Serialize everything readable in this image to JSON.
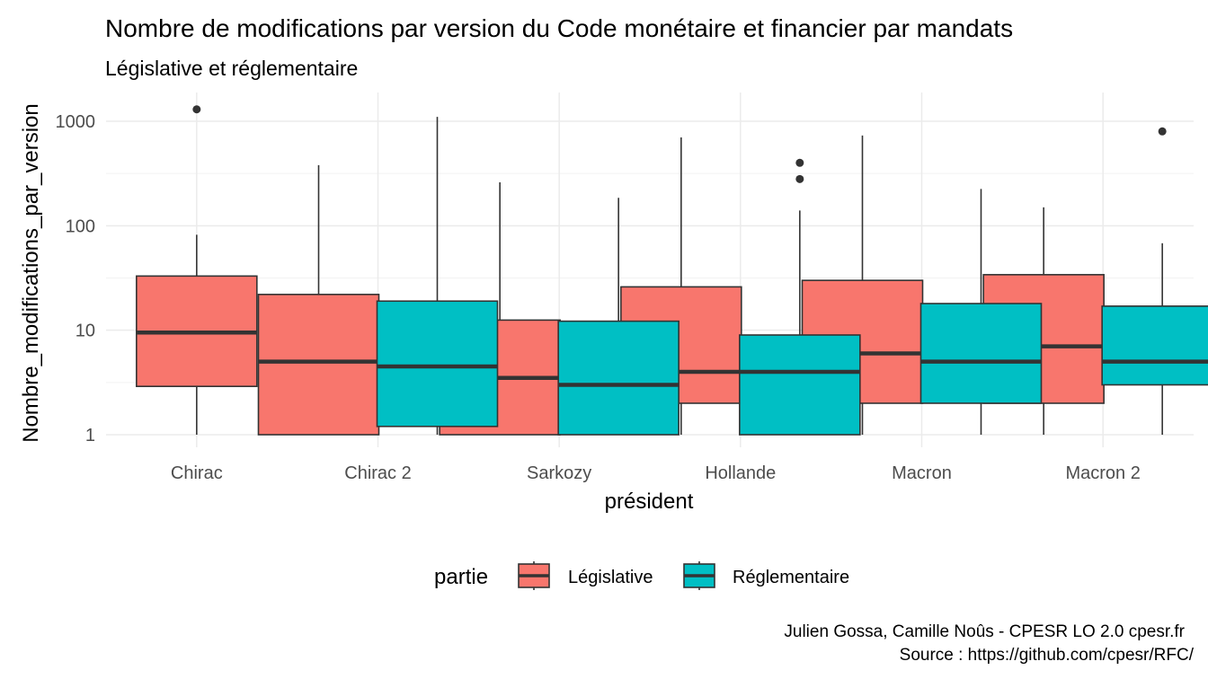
{
  "chart_data": {
    "type": "boxplot",
    "title": "Nombre de modifications par version du Code monétaire et financier par mandats",
    "subtitle": "Législative et réglementaire",
    "xlabel": "président",
    "ylabel": "Nombre_modifications_par_version",
    "y_scale": "log10",
    "ylim": [
      0.82,
      1600
    ],
    "y_ticks": [
      1,
      10,
      100,
      1000
    ],
    "y_tick_labels": [
      "1",
      "10",
      "100",
      "1000"
    ],
    "grid": true,
    "categories": [
      "Chirac",
      "Chirac 2",
      "Sarkozy",
      "Hollande",
      "Macron",
      "Macron 2"
    ],
    "legend": {
      "title": "partie",
      "position": "bottom"
    },
    "series": [
      {
        "name": "Législative",
        "color": "#F8766D",
        "boxes": [
          {
            "category": "Chirac",
            "min": 1,
            "q1": 2.9,
            "median": 9.5,
            "q3": 33,
            "max": 82,
            "outliers": [
              1300
            ]
          },
          {
            "category": "Chirac 2",
            "min": 1,
            "q1": 1,
            "median": 5,
            "q3": 22,
            "max": 380,
            "outliers": []
          },
          {
            "category": "Sarkozy",
            "min": 1,
            "q1": 1,
            "median": 3.5,
            "q3": 12.5,
            "max": 260,
            "outliers": []
          },
          {
            "category": "Hollande",
            "min": 1,
            "q1": 2,
            "median": 4,
            "q3": 26,
            "max": 700,
            "outliers": []
          },
          {
            "category": "Macron",
            "min": 1,
            "q1": 2,
            "median": 6,
            "q3": 30,
            "max": 730,
            "outliers": []
          },
          {
            "category": "Macron 2",
            "min": 1,
            "q1": 2,
            "median": 7,
            "q3": 34,
            "max": 150,
            "outliers": []
          }
        ]
      },
      {
        "name": "Réglementaire",
        "color": "#00BFC4",
        "boxes": [
          {
            "category": "Chirac 2",
            "min": 1,
            "q1": 1.2,
            "median": 4.5,
            "q3": 19,
            "max": 1100,
            "outliers": []
          },
          {
            "category": "Sarkozy",
            "min": 1,
            "q1": 1,
            "median": 3,
            "q3": 12.2,
            "max": 185,
            "outliers": []
          },
          {
            "category": "Hollande",
            "min": 1,
            "q1": 1,
            "median": 4,
            "q3": 9,
            "max": 140,
            "outliers": [
              280,
              400
            ]
          },
          {
            "category": "Macron",
            "min": 1,
            "q1": 2,
            "median": 5,
            "q3": 18,
            "max": 225,
            "outliers": []
          },
          {
            "category": "Macron 2",
            "min": 1,
            "q1": 3,
            "median": 5,
            "q3": 17,
            "max": 68,
            "outliers": [
              800
            ]
          }
        ]
      }
    ],
    "caption": [
      "Julien Gossa, Camille Noûs - CPESR LO 2.0 cpesr.fr",
      "Source : https://github.com/cpesr/RFC/"
    ]
  }
}
